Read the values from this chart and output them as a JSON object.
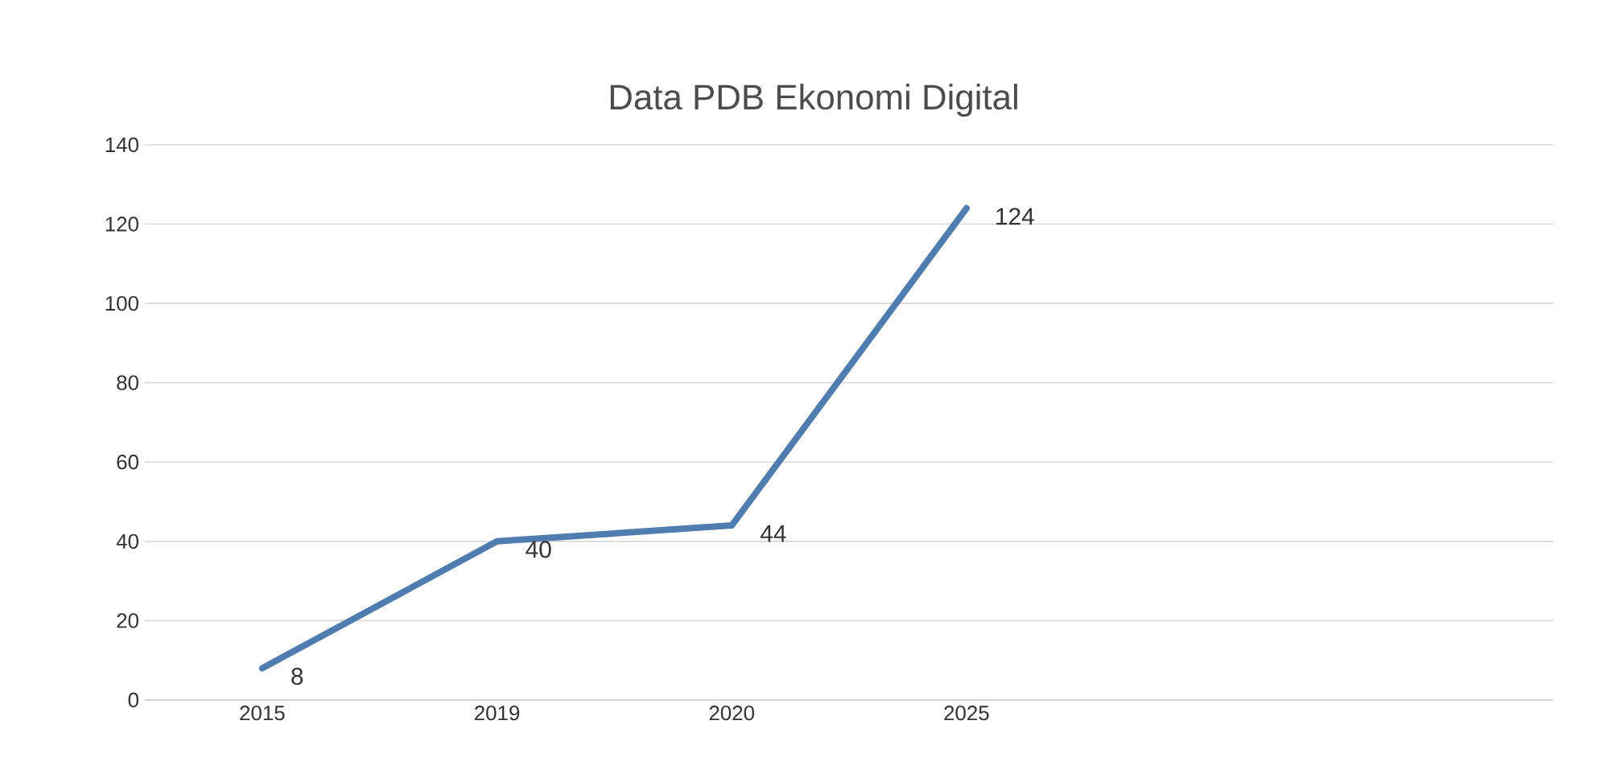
{
  "chart_data": {
    "type": "line",
    "title": "Data PDB Ekonomi Digital",
    "categories": [
      "2015",
      "2019",
      "2020",
      "2025",
      null,
      null
    ],
    "values": [
      8,
      40,
      44,
      124,
      null,
      null
    ],
    "color": "#4f7db0",
    "ylim": [
      0,
      140
    ],
    "yticks": [
      0,
      20,
      40,
      60,
      80,
      100,
      120,
      140
    ],
    "grid": "y",
    "data_labels": true,
    "marker": "none",
    "line_style": "solid"
  }
}
